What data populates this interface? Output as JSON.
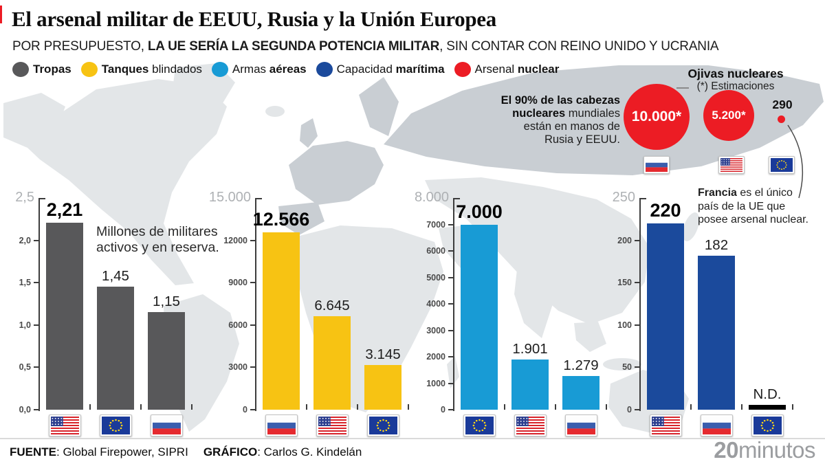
{
  "header": {
    "title": "El arsenal militar de EEUU, Rusia y la Unión Europea",
    "subtitle": {
      "pre": "POR PRESUPUESTO, ",
      "bold": "LA UE SERÍA LA SEGUNDA POTENCIA MILITAR",
      "post": ", SIN CONTAR CON REINO UNIDO Y UCRANIA"
    }
  },
  "legend": {
    "items": [
      {
        "pre": "",
        "bold": "Tropas",
        "post": "",
        "color": "#58585a"
      },
      {
        "pre": "",
        "bold": "Tanques",
        "post": " blindados",
        "color": "#f7c313"
      },
      {
        "pre": "Armas ",
        "bold": "aéreas",
        "post": "",
        "color": "#189bd5"
      },
      {
        "pre": "Capacidad ",
        "bold": "marítima",
        "post": "",
        "color": "#1b4a9c"
      },
      {
        "pre": "Arsenal ",
        "bold": "nuclear",
        "post": "",
        "color": "#ec1c24"
      }
    ]
  },
  "nuclear": {
    "heading": "Ojivas nucleares",
    "subheading": "(*) Estimaciones",
    "note": {
      "line1": "El 90% de las cabezas",
      "line2_bold": "nucleares",
      "line2_rest": " mundiales",
      "line3": "están en manos de",
      "line4": "Rusia y EEUU."
    },
    "francia": {
      "bold": "Francia",
      "line1_rest": " es el único",
      "line2": "país de la UE que",
      "line3": "posee arsenal nuclear."
    }
  },
  "chart_data": [
    {
      "type": "bar",
      "title": "Tropas",
      "note_lines": [
        "Millones de militares",
        "activos y en reserva."
      ],
      "color": "#58585a",
      "ylim": [
        0,
        2.5
      ],
      "axis_max_label": "2,5",
      "ticks": [
        "0,0",
        "0,5",
        "1,0",
        "1,5",
        "2,0"
      ],
      "categories": [
        "EEUU",
        "UE",
        "Rusia"
      ],
      "flags": [
        "us",
        "eu",
        "ru"
      ],
      "values": [
        2.21,
        1.45,
        1.15
      ],
      "value_labels": [
        "2,21",
        "1,45",
        "1,15"
      ]
    },
    {
      "type": "bar",
      "title": "Tanques blindados",
      "color": "#f7c313",
      "ylim": [
        0,
        15000
      ],
      "axis_max_label": "15.000",
      "ticks": [
        "0",
        "3000",
        "6000",
        "9000",
        "12000"
      ],
      "categories": [
        "Rusia",
        "EEUU",
        "UE"
      ],
      "flags": [
        "ru",
        "us",
        "eu"
      ],
      "values": [
        12566,
        6645,
        3145
      ],
      "value_labels": [
        "12.566",
        "6.645",
        "3.145"
      ]
    },
    {
      "type": "bar",
      "title": "Armas aéreas",
      "color": "#189bd5",
      "ylim": [
        0,
        8000
      ],
      "axis_max_label": "8.000",
      "ticks": [
        "0",
        "1000",
        "2000",
        "3000",
        "4000",
        "5000",
        "6000",
        "7000"
      ],
      "categories": [
        "UE",
        "EEUU",
        "Rusia"
      ],
      "flags": [
        "eu",
        "us",
        "ru"
      ],
      "values": [
        7000,
        1901,
        1279
      ],
      "value_labels": [
        "7.000",
        "1.901",
        "1.279"
      ]
    },
    {
      "type": "bar",
      "title": "Capacidad marítima",
      "color": "#1b4a9c",
      "ylim": [
        0,
        250
      ],
      "axis_max_label": "250",
      "ticks": [
        "0",
        "50",
        "100",
        "150",
        "200"
      ],
      "categories": [
        "EEUU",
        "Rusia",
        "UE"
      ],
      "flags": [
        "us",
        "ru",
        "eu"
      ],
      "values": [
        220,
        182,
        null
      ],
      "value_labels": [
        "220",
        "182",
        "N.D."
      ]
    },
    {
      "type": "bubble",
      "title": "Ojivas nucleares",
      "subtitle": "(*) Estimaciones",
      "color": "#ec1c24",
      "categories": [
        "Rusia",
        "EEUU",
        "UE (Francia)"
      ],
      "flags": [
        "ru",
        "us",
        "eu"
      ],
      "values": [
        10000,
        5200,
        290
      ],
      "value_labels": [
        "10.000*",
        "5.200*",
        "290"
      ]
    }
  ],
  "footer": {
    "source_label": "FUENTE",
    "source_value": ": Global Firepower, SIPRI",
    "credit_label": "GRÁFICO",
    "credit_value": ": Carlos G. Kindelán",
    "brand_bold": "20",
    "brand_rest": "minutos"
  }
}
